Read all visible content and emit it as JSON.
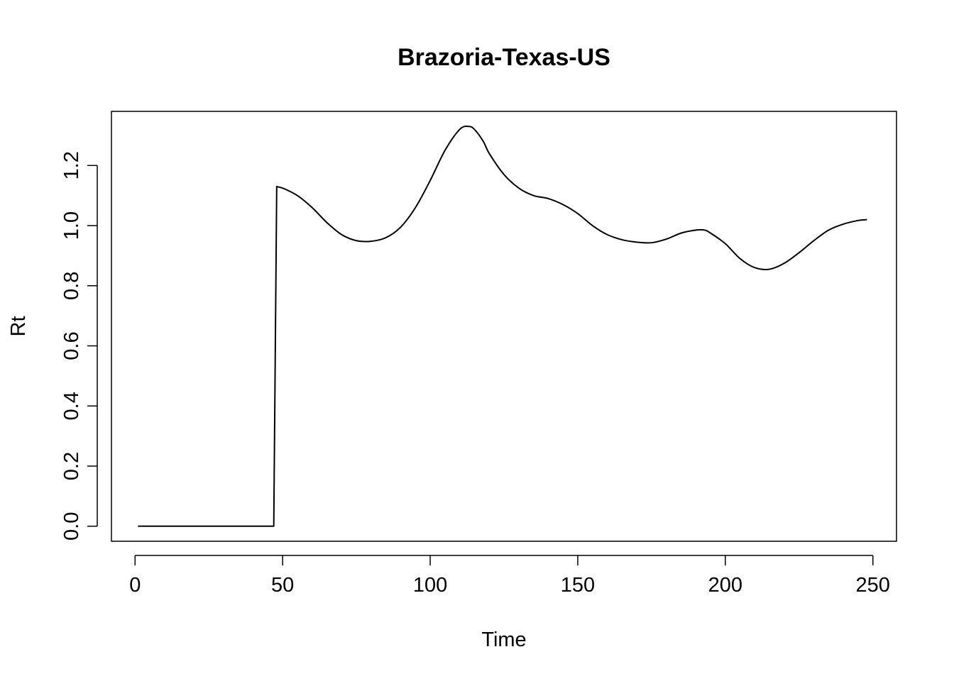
{
  "chart_data": {
    "type": "line",
    "title": "Brazoria-Texas-US",
    "xlabel": "Time",
    "ylabel": "Rt",
    "xlim": [
      -8,
      258
    ],
    "ylim": [
      -0.05,
      1.38
    ],
    "xticks": [
      0,
      50,
      100,
      150,
      200,
      250
    ],
    "yticks": [
      0.0,
      0.2,
      0.4,
      0.6,
      0.8,
      1.0,
      1.2
    ],
    "xtick_labels": [
      "0",
      "50",
      "100",
      "150",
      "200",
      "250"
    ],
    "ytick_labels": [
      "0.0",
      "0.2",
      "0.4",
      "0.6",
      "0.8",
      "1.0",
      "1.2"
    ],
    "grid": false,
    "legend": "none",
    "line_color": "#000000",
    "series": [
      {
        "x": [
          1,
          10,
          20,
          30,
          40,
          47,
          48,
          50,
          55,
          60,
          65,
          70,
          75,
          80,
          85,
          90,
          95,
          100,
          105,
          110,
          113,
          115,
          118,
          120,
          125,
          130,
          135,
          140,
          145,
          150,
          155,
          160,
          165,
          170,
          175,
          180,
          185,
          190,
          193,
          195,
          200,
          205,
          210,
          215,
          220,
          225,
          230,
          235,
          240,
          245,
          248
        ],
        "y": [
          0.0,
          0.0,
          0.0,
          0.0,
          0.0,
          0.0,
          1.13,
          1.125,
          1.1,
          1.06,
          1.01,
          0.97,
          0.95,
          0.948,
          0.96,
          0.995,
          1.06,
          1.15,
          1.25,
          1.32,
          1.33,
          1.32,
          1.28,
          1.24,
          1.17,
          1.125,
          1.1,
          1.09,
          1.07,
          1.04,
          1.0,
          0.97,
          0.953,
          0.945,
          0.943,
          0.955,
          0.975,
          0.985,
          0.985,
          0.975,
          0.94,
          0.89,
          0.86,
          0.855,
          0.875,
          0.91,
          0.95,
          0.985,
          1.005,
          1.017,
          1.02
        ]
      }
    ]
  }
}
